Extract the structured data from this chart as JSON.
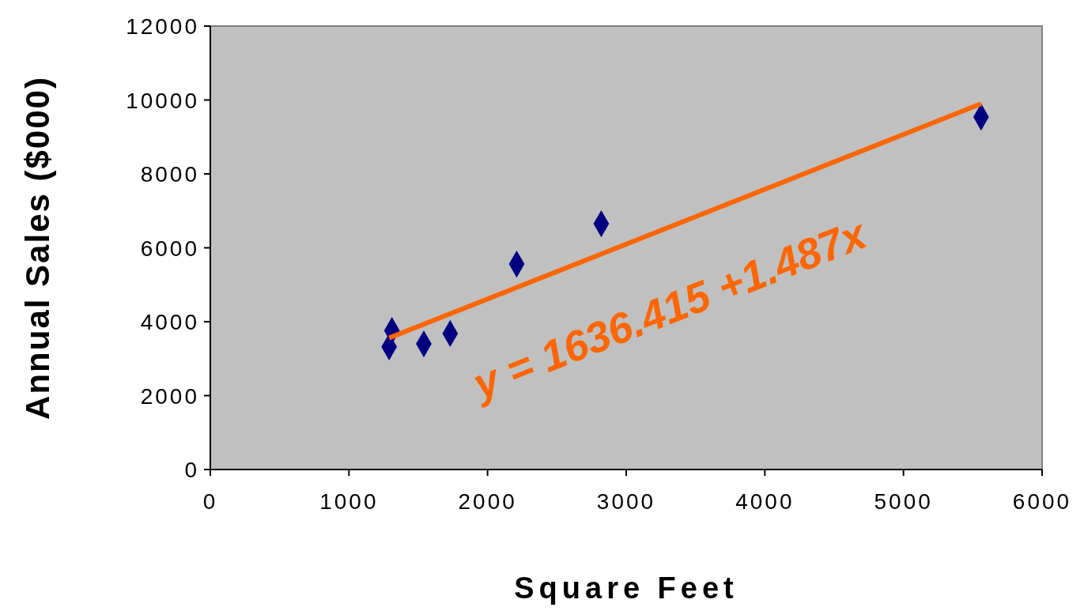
{
  "chart_data": {
    "type": "scatter",
    "xlabel": "Square Feet",
    "ylabel": "Annual Sales ($000)",
    "xlim": [
      0,
      6000
    ],
    "xticks": [
      0,
      1000,
      2000,
      3000,
      4000,
      5000,
      6000
    ],
    "ylim": [
      0,
      12000
    ],
    "yticks": [
      0,
      2000,
      4000,
      6000,
      8000,
      10000,
      12000
    ],
    "grid": false,
    "series": [
      {
        "marker": "diamond",
        "color": "#000080",
        "x": [
          1730,
          1540,
          2820,
          5560,
          1290,
          2210,
          1310
        ],
        "values": [
          3680,
          3400,
          6650,
          9540,
          3320,
          5560,
          3760
        ]
      },
      {
        "type": "line",
        "color": "#ff6600",
        "x": [
          1290,
          5560
        ],
        "values": [
          3560,
          9900
        ]
      }
    ],
    "annotations": [
      "y = 1636.415 +1.487x"
    ]
  }
}
